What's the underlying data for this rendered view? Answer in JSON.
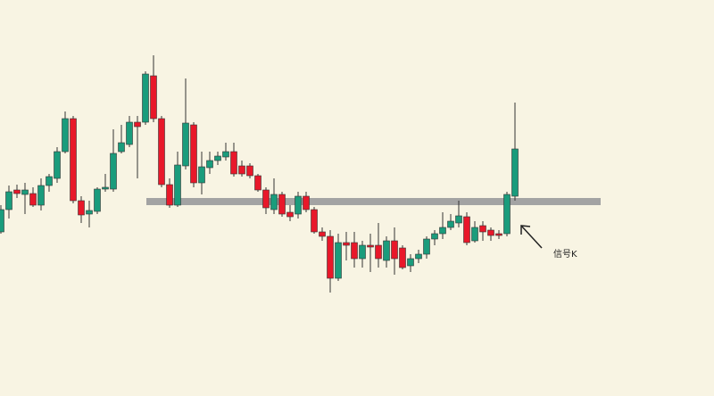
{
  "chart_data": {
    "type": "candlestick",
    "ylim": [
      56,
      500
    ],
    "up_color": "#1a9c7c",
    "down_color": "#e8182a",
    "level_color": "#a3a3a3",
    "level": 274,
    "annotation": "信号K",
    "open": [
      240,
      265,
      287,
      282,
      283,
      270,
      292,
      300,
      330,
      367,
      275,
      260,
      263,
      288,
      288,
      330,
      338,
      363,
      363,
      415,
      367,
      293,
      270,
      314,
      360,
      295,
      312,
      320,
      324,
      330,
      314,
      314,
      303,
      287,
      265,
      282,
      262,
      260,
      280,
      265,
      240,
      235,
      188,
      228,
      228,
      210,
      225,
      225,
      208,
      230,
      222,
      202,
      210,
      215,
      232,
      238,
      245,
      250,
      257,
      230,
      247,
      242,
      238,
      238,
      280
    ],
    "high": [
      270,
      292,
      293,
      295,
      290,
      300,
      305,
      335,
      375,
      370,
      280,
      275,
      290,
      305,
      355,
      360,
      370,
      370,
      420,
      438,
      370,
      300,
      330,
      412,
      363,
      330,
      330,
      330,
      340,
      340,
      320,
      317,
      305,
      290,
      300,
      285,
      270,
      285,
      285,
      268,
      245,
      242,
      238,
      240,
      240,
      230,
      238,
      250,
      235,
      245,
      225,
      215,
      220,
      235,
      242,
      262,
      260,
      275,
      262,
      252,
      252,
      245,
      242,
      285,
      385
    ],
    "low": [
      238,
      255,
      278,
      260,
      268,
      264,
      285,
      295,
      328,
      272,
      250,
      245,
      260,
      285,
      285,
      328,
      335,
      300,
      360,
      363,
      290,
      267,
      268,
      310,
      290,
      282,
      305,
      315,
      320,
      302,
      302,
      300,
      285,
      260,
      260,
      257,
      252,
      255,
      262,
      238,
      230,
      172,
      185,
      208,
      200,
      200,
      195,
      200,
      200,
      192,
      198,
      195,
      205,
      210,
      225,
      232,
      242,
      245,
      225,
      228,
      230,
      230,
      232,
      235,
      275
    ],
    "close": [
      265,
      285,
      283,
      287,
      270,
      292,
      302,
      330,
      367,
      275,
      259,
      264,
      288,
      290,
      328,
      340,
      363,
      358,
      417,
      367,
      293,
      270,
      315,
      362,
      295,
      313,
      320,
      325,
      330,
      305,
      305,
      303,
      287,
      267,
      282,
      260,
      257,
      280,
      265,
      240,
      235,
      188,
      228,
      225,
      210,
      225,
      223,
      210,
      230,
      210,
      200,
      210,
      215,
      232,
      238,
      245,
      252,
      258,
      228,
      245,
      240,
      236,
      236,
      282,
      333
    ]
  }
}
